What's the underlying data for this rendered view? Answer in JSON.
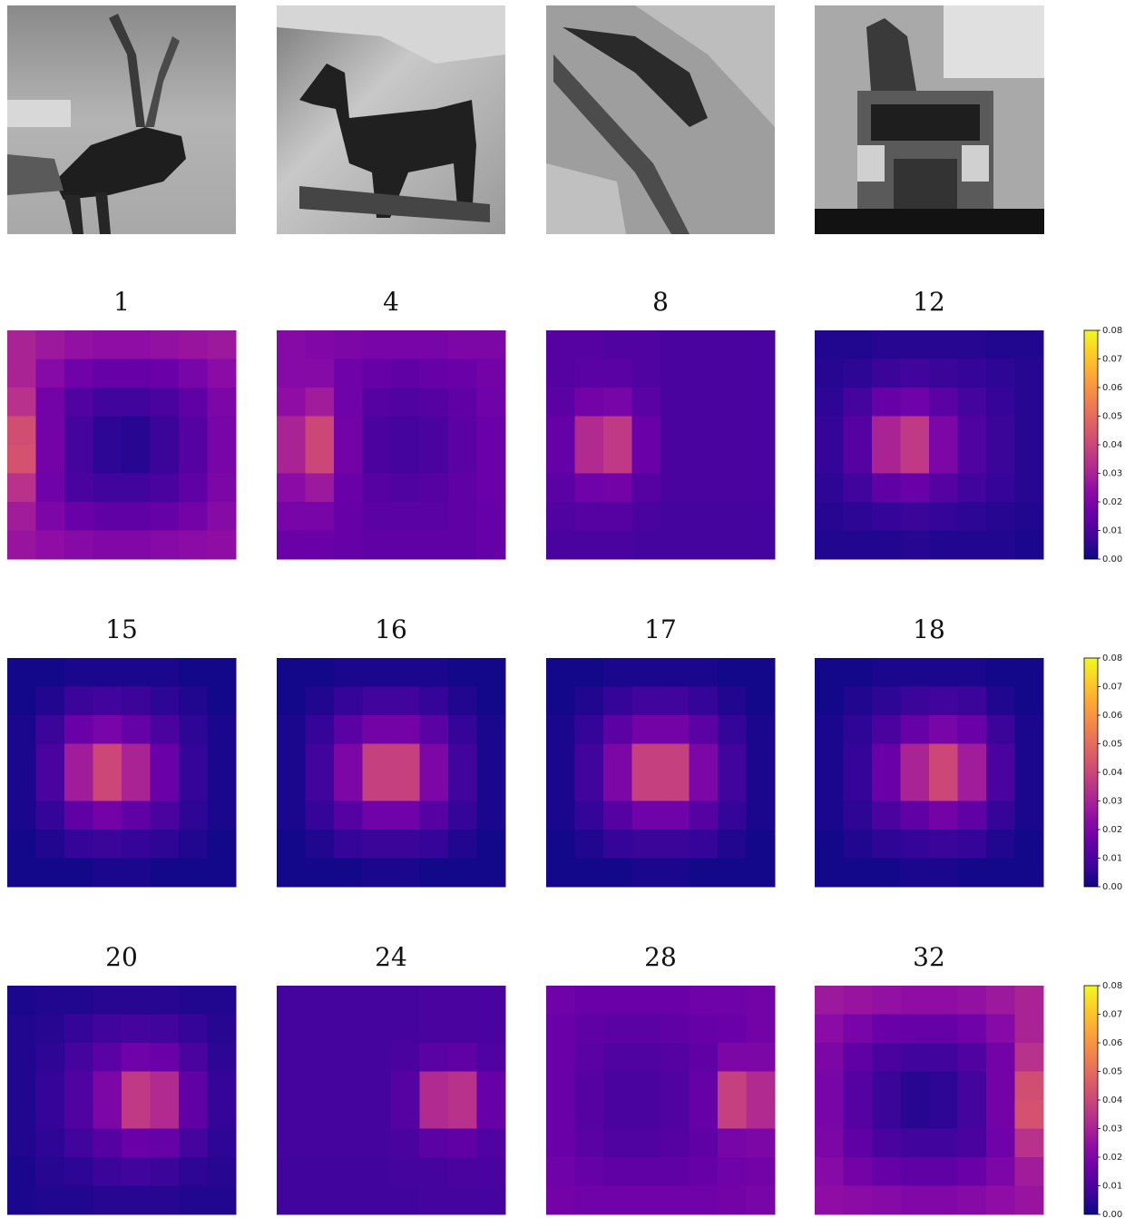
{
  "chart_data": [
    {
      "type": "heatmap",
      "title": "1",
      "zlim": [
        0,
        0.08
      ],
      "values": [
        [
          0.03,
          0.027,
          0.025,
          0.024,
          0.024,
          0.025,
          0.026,
          0.027
        ],
        [
          0.03,
          0.022,
          0.017,
          0.015,
          0.015,
          0.016,
          0.019,
          0.023
        ],
        [
          0.034,
          0.018,
          0.011,
          0.008,
          0.008,
          0.01,
          0.014,
          0.02
        ],
        [
          0.042,
          0.018,
          0.009,
          0.005,
          0.004,
          0.007,
          0.012,
          0.019
        ],
        [
          0.043,
          0.018,
          0.009,
          0.005,
          0.004,
          0.007,
          0.012,
          0.019
        ],
        [
          0.034,
          0.017,
          0.01,
          0.008,
          0.008,
          0.01,
          0.014,
          0.02
        ],
        [
          0.028,
          0.02,
          0.016,
          0.014,
          0.014,
          0.015,
          0.018,
          0.022
        ],
        [
          0.026,
          0.024,
          0.022,
          0.021,
          0.021,
          0.022,
          0.023,
          0.024
        ]
      ]
    },
    {
      "type": "heatmap",
      "title": "4",
      "zlim": [
        0,
        0.08
      ],
      "values": [
        [
          0.022,
          0.021,
          0.02,
          0.019,
          0.019,
          0.019,
          0.02,
          0.02
        ],
        [
          0.022,
          0.022,
          0.017,
          0.015,
          0.014,
          0.015,
          0.016,
          0.018
        ],
        [
          0.024,
          0.028,
          0.017,
          0.012,
          0.011,
          0.012,
          0.014,
          0.017
        ],
        [
          0.03,
          0.04,
          0.018,
          0.01,
          0.009,
          0.01,
          0.013,
          0.016
        ],
        [
          0.03,
          0.04,
          0.018,
          0.01,
          0.009,
          0.01,
          0.013,
          0.016
        ],
        [
          0.023,
          0.027,
          0.016,
          0.012,
          0.011,
          0.012,
          0.014,
          0.016
        ],
        [
          0.019,
          0.019,
          0.015,
          0.013,
          0.013,
          0.013,
          0.014,
          0.015
        ],
        [
          0.016,
          0.016,
          0.015,
          0.014,
          0.014,
          0.014,
          0.014,
          0.015
        ]
      ]
    },
    {
      "type": "heatmap",
      "title": "8",
      "zlim": [
        0,
        0.08
      ],
      "values": [
        [
          0.012,
          0.012,
          0.011,
          0.011,
          0.01,
          0.01,
          0.01,
          0.01
        ],
        [
          0.012,
          0.013,
          0.013,
          0.011,
          0.01,
          0.01,
          0.01,
          0.01
        ],
        [
          0.013,
          0.018,
          0.019,
          0.013,
          0.01,
          0.01,
          0.01,
          0.01
        ],
        [
          0.015,
          0.032,
          0.036,
          0.016,
          0.01,
          0.01,
          0.01,
          0.01
        ],
        [
          0.015,
          0.032,
          0.036,
          0.016,
          0.01,
          0.01,
          0.01,
          0.01
        ],
        [
          0.013,
          0.017,
          0.018,
          0.012,
          0.01,
          0.01,
          0.01,
          0.01
        ],
        [
          0.011,
          0.012,
          0.012,
          0.01,
          0.009,
          0.009,
          0.009,
          0.009
        ],
        [
          0.01,
          0.01,
          0.01,
          0.009,
          0.009,
          0.009,
          0.009,
          0.009
        ]
      ]
    },
    {
      "type": "heatmap",
      "title": "12",
      "zlim": [
        0,
        0.08
      ],
      "zticks": [
        {
          "value": 0,
          "label": "0.00"
        },
        0.01,
        0.02,
        0.03,
        0.04,
        0.05,
        0.06,
        0.07,
        0.08
      ],
      "values": [
        [
          0.003,
          0.003,
          0.004,
          0.004,
          0.004,
          0.004,
          0.003,
          0.003
        ],
        [
          0.004,
          0.005,
          0.007,
          0.008,
          0.007,
          0.006,
          0.005,
          0.004
        ],
        [
          0.005,
          0.009,
          0.015,
          0.017,
          0.013,
          0.009,
          0.006,
          0.004
        ],
        [
          0.006,
          0.012,
          0.03,
          0.036,
          0.02,
          0.011,
          0.007,
          0.004
        ],
        [
          0.006,
          0.012,
          0.03,
          0.036,
          0.02,
          0.011,
          0.007,
          0.004
        ],
        [
          0.005,
          0.008,
          0.014,
          0.016,
          0.012,
          0.008,
          0.006,
          0.004
        ],
        [
          0.004,
          0.005,
          0.006,
          0.007,
          0.006,
          0.005,
          0.004,
          0.003
        ],
        [
          0.003,
          0.003,
          0.003,
          0.004,
          0.003,
          0.003,
          0.003,
          0.002
        ]
      ]
    },
    {
      "type": "heatmap",
      "title": "15",
      "zlim": [
        0,
        0.08
      ],
      "values": [
        [
          0.001,
          0.001,
          0.002,
          0.002,
          0.002,
          0.002,
          0.001,
          0.001
        ],
        [
          0.001,
          0.003,
          0.007,
          0.008,
          0.007,
          0.005,
          0.003,
          0.001
        ],
        [
          0.002,
          0.007,
          0.016,
          0.019,
          0.015,
          0.01,
          0.005,
          0.002
        ],
        [
          0.002,
          0.01,
          0.028,
          0.04,
          0.03,
          0.016,
          0.006,
          0.002
        ],
        [
          0.002,
          0.01,
          0.028,
          0.04,
          0.03,
          0.016,
          0.006,
          0.002
        ],
        [
          0.002,
          0.006,
          0.014,
          0.018,
          0.014,
          0.01,
          0.005,
          0.002
        ],
        [
          0.001,
          0.003,
          0.006,
          0.007,
          0.006,
          0.005,
          0.003,
          0.001
        ],
        [
          0.001,
          0.001,
          0.001,
          0.002,
          0.002,
          0.001,
          0.001,
          0.001
        ]
      ]
    },
    {
      "type": "heatmap",
      "title": "16",
      "zlim": [
        0,
        0.08
      ],
      "values": [
        [
          0.001,
          0.001,
          0.002,
          0.002,
          0.002,
          0.002,
          0.001,
          0.001
        ],
        [
          0.001,
          0.003,
          0.006,
          0.008,
          0.008,
          0.006,
          0.003,
          0.001
        ],
        [
          0.002,
          0.006,
          0.013,
          0.018,
          0.018,
          0.013,
          0.006,
          0.002
        ],
        [
          0.002,
          0.008,
          0.02,
          0.038,
          0.038,
          0.02,
          0.008,
          0.002
        ],
        [
          0.002,
          0.008,
          0.02,
          0.038,
          0.038,
          0.02,
          0.008,
          0.002
        ],
        [
          0.002,
          0.006,
          0.012,
          0.017,
          0.017,
          0.012,
          0.006,
          0.002
        ],
        [
          0.001,
          0.003,
          0.006,
          0.007,
          0.007,
          0.006,
          0.003,
          0.001
        ],
        [
          0.001,
          0.001,
          0.001,
          0.002,
          0.002,
          0.001,
          0.001,
          0.001
        ]
      ]
    },
    {
      "type": "heatmap",
      "title": "17",
      "zlim": [
        0,
        0.08
      ],
      "values": [
        [
          0.001,
          0.001,
          0.002,
          0.002,
          0.002,
          0.002,
          0.001,
          0.001
        ],
        [
          0.001,
          0.003,
          0.006,
          0.008,
          0.008,
          0.006,
          0.003,
          0.001
        ],
        [
          0.002,
          0.006,
          0.013,
          0.018,
          0.018,
          0.013,
          0.006,
          0.002
        ],
        [
          0.002,
          0.008,
          0.02,
          0.038,
          0.038,
          0.02,
          0.008,
          0.002
        ],
        [
          0.002,
          0.008,
          0.02,
          0.038,
          0.038,
          0.02,
          0.008,
          0.002
        ],
        [
          0.002,
          0.006,
          0.012,
          0.017,
          0.017,
          0.012,
          0.006,
          0.002
        ],
        [
          0.001,
          0.003,
          0.006,
          0.007,
          0.007,
          0.006,
          0.003,
          0.001
        ],
        [
          0.001,
          0.001,
          0.001,
          0.002,
          0.002,
          0.001,
          0.001,
          0.001
        ]
      ]
    },
    {
      "type": "heatmap",
      "title": "18",
      "zlim": [
        0,
        0.08
      ],
      "zticks": [
        {
          "value": 0,
          "label": "0.00"
        },
        0.01,
        0.02,
        0.03,
        0.04,
        0.05,
        0.06,
        0.07,
        0.08
      ],
      "values": [
        [
          0.001,
          0.001,
          0.002,
          0.002,
          0.002,
          0.002,
          0.001,
          0.001
        ],
        [
          0.001,
          0.003,
          0.005,
          0.007,
          0.008,
          0.007,
          0.003,
          0.001
        ],
        [
          0.002,
          0.005,
          0.01,
          0.015,
          0.019,
          0.016,
          0.007,
          0.002
        ],
        [
          0.002,
          0.006,
          0.016,
          0.03,
          0.04,
          0.028,
          0.01,
          0.002
        ],
        [
          0.002,
          0.006,
          0.016,
          0.03,
          0.04,
          0.028,
          0.01,
          0.002
        ],
        [
          0.002,
          0.005,
          0.01,
          0.014,
          0.018,
          0.014,
          0.006,
          0.002
        ],
        [
          0.001,
          0.003,
          0.005,
          0.006,
          0.007,
          0.006,
          0.003,
          0.001
        ],
        [
          0.001,
          0.001,
          0.001,
          0.002,
          0.002,
          0.001,
          0.001,
          0.001
        ]
      ]
    },
    {
      "type": "heatmap",
      "title": "20",
      "zlim": [
        0,
        0.08
      ],
      "values": [
        [
          0.002,
          0.003,
          0.003,
          0.004,
          0.004,
          0.004,
          0.003,
          0.003
        ],
        [
          0.003,
          0.004,
          0.006,
          0.008,
          0.009,
          0.008,
          0.006,
          0.004
        ],
        [
          0.003,
          0.005,
          0.009,
          0.013,
          0.017,
          0.016,
          0.01,
          0.005
        ],
        [
          0.003,
          0.006,
          0.011,
          0.02,
          0.036,
          0.032,
          0.014,
          0.006
        ],
        [
          0.003,
          0.006,
          0.011,
          0.02,
          0.036,
          0.032,
          0.014,
          0.006
        ],
        [
          0.003,
          0.005,
          0.008,
          0.012,
          0.016,
          0.015,
          0.009,
          0.005
        ],
        [
          0.002,
          0.004,
          0.005,
          0.007,
          0.008,
          0.007,
          0.005,
          0.004
        ],
        [
          0.002,
          0.003,
          0.003,
          0.004,
          0.004,
          0.004,
          0.003,
          0.003
        ]
      ]
    },
    {
      "type": "heatmap",
      "title": "24",
      "zlim": [
        0,
        0.08
      ],
      "values": [
        [
          0.009,
          0.009,
          0.009,
          0.009,
          0.009,
          0.01,
          0.01,
          0.01
        ],
        [
          0.009,
          0.009,
          0.009,
          0.009,
          0.009,
          0.01,
          0.01,
          0.01
        ],
        [
          0.009,
          0.009,
          0.009,
          0.009,
          0.01,
          0.013,
          0.014,
          0.011
        ],
        [
          0.009,
          0.009,
          0.009,
          0.009,
          0.012,
          0.032,
          0.034,
          0.015
        ],
        [
          0.009,
          0.009,
          0.009,
          0.009,
          0.012,
          0.032,
          0.034,
          0.015
        ],
        [
          0.009,
          0.009,
          0.009,
          0.009,
          0.01,
          0.013,
          0.014,
          0.011
        ],
        [
          0.008,
          0.008,
          0.008,
          0.008,
          0.009,
          0.009,
          0.01,
          0.01
        ],
        [
          0.008,
          0.008,
          0.008,
          0.008,
          0.008,
          0.009,
          0.009,
          0.009
        ]
      ]
    },
    {
      "type": "heatmap",
      "title": "28",
      "zlim": [
        0,
        0.08
      ],
      "values": [
        [
          0.017,
          0.016,
          0.016,
          0.016,
          0.016,
          0.017,
          0.017,
          0.018
        ],
        [
          0.016,
          0.014,
          0.013,
          0.013,
          0.014,
          0.015,
          0.016,
          0.018
        ],
        [
          0.016,
          0.013,
          0.011,
          0.011,
          0.012,
          0.014,
          0.02,
          0.02
        ],
        [
          0.016,
          0.012,
          0.01,
          0.01,
          0.011,
          0.015,
          0.038,
          0.032
        ],
        [
          0.016,
          0.012,
          0.01,
          0.01,
          0.011,
          0.015,
          0.038,
          0.032
        ],
        [
          0.016,
          0.013,
          0.011,
          0.011,
          0.012,
          0.014,
          0.019,
          0.02
        ],
        [
          0.017,
          0.015,
          0.014,
          0.014,
          0.014,
          0.015,
          0.017,
          0.018
        ],
        [
          0.018,
          0.017,
          0.017,
          0.017,
          0.017,
          0.017,
          0.018,
          0.019
        ]
      ]
    },
    {
      "type": "heatmap",
      "title": "32",
      "zlim": [
        0,
        0.08
      ],
      "zticks": [
        {
          "value": 0,
          "label": "0.00"
        },
        0.01,
        0.02,
        0.03,
        0.04,
        0.05,
        0.06,
        0.07,
        0.08
      ],
      "values": [
        [
          0.027,
          0.026,
          0.025,
          0.024,
          0.024,
          0.025,
          0.027,
          0.03
        ],
        [
          0.023,
          0.019,
          0.016,
          0.015,
          0.015,
          0.017,
          0.022,
          0.03
        ],
        [
          0.02,
          0.014,
          0.01,
          0.008,
          0.008,
          0.011,
          0.018,
          0.034
        ],
        [
          0.019,
          0.012,
          0.007,
          0.004,
          0.005,
          0.009,
          0.018,
          0.042
        ],
        [
          0.019,
          0.012,
          0.007,
          0.004,
          0.005,
          0.009,
          0.018,
          0.043
        ],
        [
          0.02,
          0.014,
          0.01,
          0.008,
          0.008,
          0.01,
          0.017,
          0.034
        ],
        [
          0.022,
          0.018,
          0.015,
          0.014,
          0.014,
          0.016,
          0.02,
          0.028
        ],
        [
          0.024,
          0.023,
          0.022,
          0.021,
          0.021,
          0.022,
          0.024,
          0.026
        ]
      ]
    }
  ]
}
